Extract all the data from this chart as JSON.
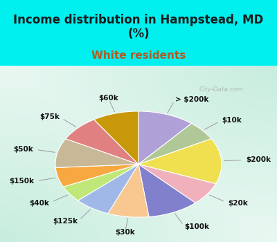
{
  "title": "Income distribution in Hampstead, MD\n(%)",
  "subtitle": "White residents",
  "title_color": "#1a1a1a",
  "subtitle_color": "#b05a20",
  "bg_cyan": "#00f0f0",
  "labels": [
    "> $200k",
    "$10k",
    "$200k",
    "$20k",
    "$100k",
    "$30k",
    "$125k",
    "$40k",
    "$150k",
    "$50k",
    "$75k",
    "$60k"
  ],
  "values": [
    11,
    6,
    14,
    7,
    10,
    8,
    7,
    5,
    6,
    9,
    8,
    9
  ],
  "colors": [
    "#b0a0d8",
    "#b0c898",
    "#f0e050",
    "#f0b0bc",
    "#8080cc",
    "#f8c890",
    "#a0b8e8",
    "#c0e878",
    "#f8a840",
    "#c8b898",
    "#e08080",
    "#c8980a"
  ],
  "startangle": 90,
  "figsize": [
    4.0,
    3.5
  ],
  "dpi": 100,
  "title_fontsize": 12,
  "subtitle_fontsize": 11,
  "label_fontsize": 7.5
}
